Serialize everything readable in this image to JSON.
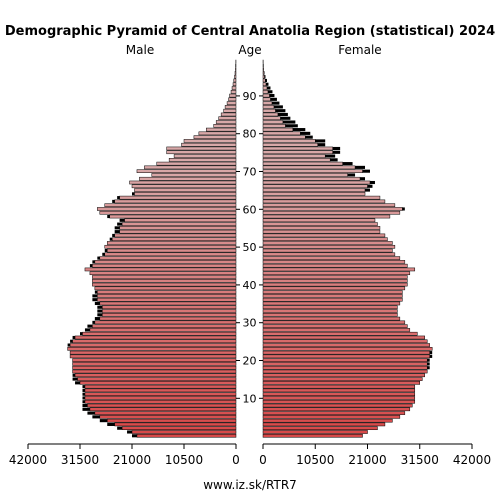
{
  "chart_data": {
    "type": "population-pyramid",
    "title": "Demographic Pyramid of Central Anatolia Region (statistical) 2024",
    "left_label": "Male",
    "center_label": "Age",
    "right_label": "Female",
    "age_ticks": [
      "10",
      "20",
      "30",
      "40",
      "50",
      "60",
      "70",
      "80",
      "90"
    ],
    "x_ticks_left": [
      "42000",
      "31500",
      "21000",
      "10500",
      "0"
    ],
    "x_ticks_right": [
      "0",
      "10500",
      "21000",
      "31500",
      "42000"
    ],
    "xlim": [
      0,
      42000
    ],
    "age_range": [
      0,
      99
    ],
    "ages": [
      0,
      1,
      2,
      3,
      4,
      5,
      6,
      7,
      8,
      9,
      10,
      11,
      12,
      13,
      14,
      15,
      16,
      17,
      18,
      19,
      20,
      21,
      22,
      23,
      24,
      25,
      26,
      27,
      28,
      29,
      30,
      31,
      32,
      33,
      34,
      35,
      36,
      37,
      38,
      39,
      40,
      41,
      42,
      43,
      44,
      45,
      46,
      47,
      48,
      49,
      50,
      51,
      52,
      53,
      54,
      55,
      56,
      57,
      58,
      59,
      60,
      61,
      62,
      63,
      64,
      65,
      66,
      67,
      68,
      69,
      70,
      71,
      72,
      73,
      74,
      75,
      76,
      77,
      78,
      79,
      80,
      81,
      82,
      83,
      84,
      85,
      86,
      87,
      88,
      89,
      90,
      91,
      92,
      93,
      94,
      95,
      96,
      97,
      98,
      99
    ],
    "series": [
      {
        "name": "Male",
        "values": [
          21000,
          22000,
          24000,
          26000,
          27500,
          29000,
          30000,
          31000,
          31000,
          31000,
          31000,
          31000,
          31000,
          31000,
          32500,
          33000,
          33000,
          33000,
          33000,
          33000,
          33000,
          33500,
          33500,
          34000,
          34000,
          33500,
          33000,
          31500,
          30500,
          30000,
          29000,
          28500,
          28000,
          28000,
          28000,
          28500,
          29000,
          29000,
          28500,
          28500,
          29000,
          29000,
          29000,
          29500,
          30500,
          29500,
          29000,
          28000,
          27000,
          26500,
          26500,
          26000,
          25500,
          25000,
          24500,
          24500,
          24000,
          23500,
          26000,
          27500,
          28000,
          26500,
          25000,
          24000,
          21000,
          20500,
          21000,
          21500,
          19500,
          17000,
          20000,
          18500,
          16000,
          13500,
          12500,
          14000,
          14000,
          11000,
          10500,
          8500,
          7500,
          6000,
          4500,
          4000,
          3500,
          3000,
          2500,
          2200,
          1800,
          1500,
          1300,
          1000,
          800,
          600,
          450,
          300,
          200,
          120,
          80,
          40
        ]
      },
      {
        "name": "Female",
        "values": [
          20000,
          21000,
          23000,
          24500,
          26000,
          27500,
          28500,
          29500,
          30000,
          30500,
          30500,
          30500,
          30500,
          30500,
          31500,
          32000,
          32500,
          33000,
          33500,
          33500,
          33500,
          34000,
          34000,
          34000,
          33500,
          33000,
          32500,
          31000,
          29500,
          29000,
          28500,
          27500,
          27000,
          27000,
          27000,
          27500,
          28000,
          28000,
          28000,
          28500,
          29000,
          29000,
          29000,
          29500,
          30500,
          29000,
          28500,
          27500,
          26500,
          26000,
          26500,
          26000,
          25000,
          24500,
          23500,
          23500,
          23000,
          22500,
          25500,
          27500,
          28500,
          26500,
          24500,
          23500,
          20500,
          21500,
          22000,
          22500,
          20500,
          18500,
          21500,
          20500,
          18000,
          15000,
          14500,
          15500,
          15500,
          12500,
          12500,
          10000,
          9500,
          8500,
          7000,
          6500,
          5500,
          5000,
          4500,
          4000,
          3300,
          2800,
          2300,
          1900,
          1500,
          1100,
          800,
          500,
          300,
          150,
          90,
          40
        ]
      }
    ],
    "excess_color": "#000000",
    "male_gradient": [
      "#d84848",
      "#d8a8a8"
    ],
    "female_gradient": [
      "#d84848",
      "#d8a8a8"
    ],
    "bar_outline": "#000000"
  },
  "footer": {
    "source": "www.iz.sk/RTR7"
  }
}
